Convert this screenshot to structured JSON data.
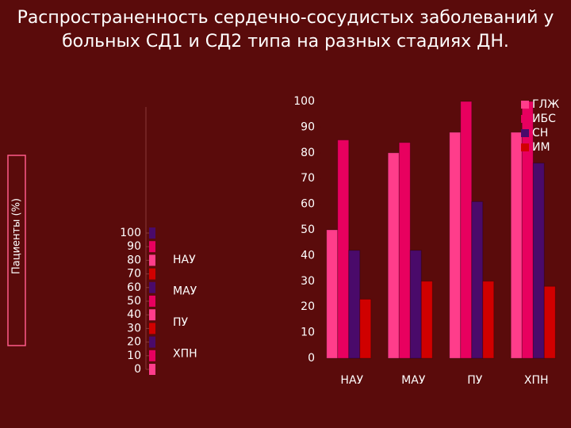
{
  "chart_data": {
    "type": "bar",
    "title": "Распространенность сердечно-сосудистых заболеваний у больных СД1 и СД2 типа на разных стадиях ДН.",
    "y_label": "Пациенты (%)",
    "categories": [
      "НАУ",
      "МАУ",
      "ПУ",
      "ХПН"
    ],
    "series": [
      {
        "name": "ГЛЖ",
        "color": "#ff3d8b",
        "values": [
          50,
          80,
          88,
          88
        ]
      },
      {
        "name": "ИБС",
        "color": "#e8005f",
        "values": [
          85,
          84,
          100,
          100
        ]
      },
      {
        "name": "СН",
        "color": "#4a0a6a",
        "values": [
          42,
          42,
          61,
          76
        ]
      },
      {
        "name": "ИМ",
        "color": "#d00000",
        "values": [
          23,
          30,
          30,
          28
        ]
      }
    ],
    "ylim": [
      0,
      100
    ],
    "yticks": [
      0,
      10,
      20,
      30,
      40,
      50,
      60,
      70,
      80,
      90,
      100
    ],
    "inset": {
      "yticks": [
        0,
        10,
        20,
        30,
        40,
        50,
        60,
        70,
        80,
        90,
        100
      ],
      "labels": [
        "НАУ",
        "МАУ",
        "ПУ",
        "ХПН"
      ]
    }
  }
}
